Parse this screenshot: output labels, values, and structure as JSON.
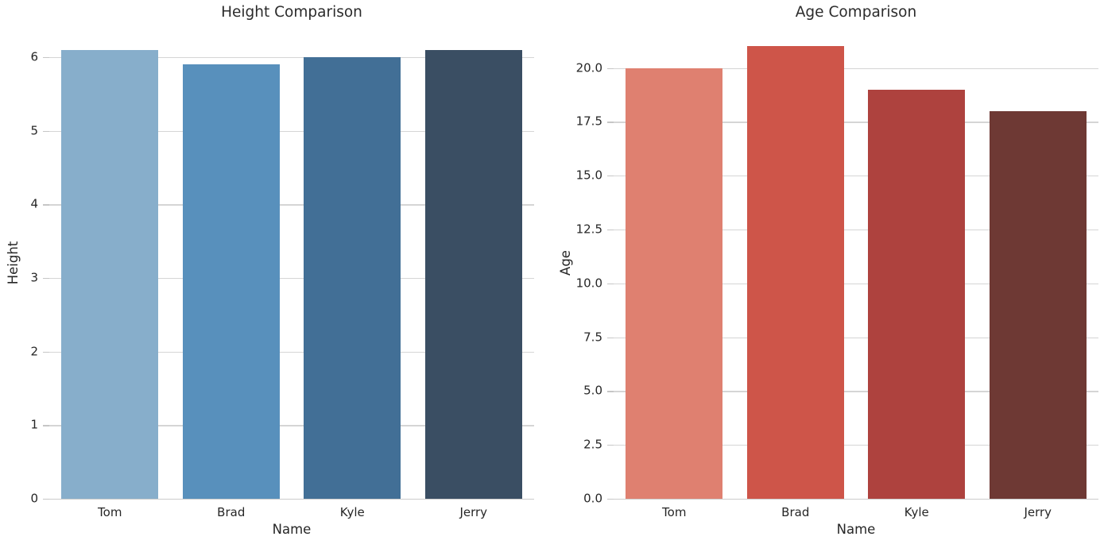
{
  "style": {
    "background": "#ffffff",
    "text_color": "#262626",
    "grid_color": "#d5d5d5",
    "spine_color": "#cccccc",
    "tick_color": "#c6c6c6"
  },
  "chart_data": [
    {
      "type": "bar",
      "title": "Height Comparison",
      "xlabel": "Name",
      "ylabel": "Height",
      "categories": [
        "Tom",
        "Brad",
        "Kyle",
        "Jerry"
      ],
      "values": [
        6.1,
        5.9,
        6.0,
        6.1
      ],
      "bar_colors": [
        "#87AECB",
        "#5890BC",
        "#426F96",
        "#3A4E63"
      ],
      "ylim": [
        0,
        6.41
      ],
      "yticks": [
        {
          "value": 0,
          "label": "0"
        },
        {
          "value": 1,
          "label": "1"
        },
        {
          "value": 2,
          "label": "2"
        },
        {
          "value": 3,
          "label": "3"
        },
        {
          "value": 4,
          "label": "4"
        },
        {
          "value": 5,
          "label": "5"
        },
        {
          "value": 6,
          "label": "6"
        }
      ],
      "grid": true,
      "legend": false,
      "bar_width_fraction": 0.8
    },
    {
      "type": "bar",
      "title": "Age Comparison",
      "xlabel": "Name",
      "ylabel": "Age",
      "categories": [
        "Tom",
        "Brad",
        "Kyle",
        "Jerry"
      ],
      "values": [
        20,
        21,
        19,
        18
      ],
      "bar_colors": [
        "#DF8070",
        "#CE5549",
        "#AE423E",
        "#6E3934"
      ],
      "ylim": [
        0,
        21.9
      ],
      "yticks": [
        {
          "value": 0,
          "label": "0.0"
        },
        {
          "value": 2.5,
          "label": "2.5"
        },
        {
          "value": 5,
          "label": "5.0"
        },
        {
          "value": 7.5,
          "label": "7.5"
        },
        {
          "value": 10,
          "label": "10.0"
        },
        {
          "value": 12.5,
          "label": "12.5"
        },
        {
          "value": 15,
          "label": "15.0"
        },
        {
          "value": 17.5,
          "label": "17.5"
        },
        {
          "value": 20,
          "label": "20.0"
        }
      ],
      "grid": true,
      "legend": false,
      "bar_width_fraction": 0.8
    }
  ]
}
